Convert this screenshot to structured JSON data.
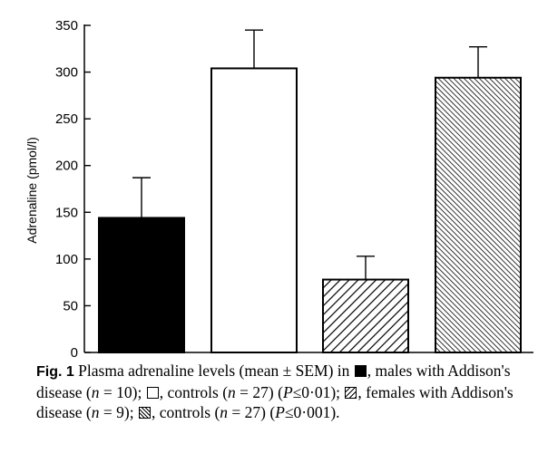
{
  "chart_data": {
    "type": "bar",
    "title": "",
    "xlabel": "",
    "ylabel": "Adrenaline (pmol/l)",
    "ylim": [
      0,
      350
    ],
    "yticks": [
      "0",
      "50",
      "100",
      "150",
      "200",
      "250",
      "300",
      "350"
    ],
    "grid": false,
    "categories": [
      "males with Addison's disease",
      "controls",
      "females with Addison's disease",
      "controls"
    ],
    "values": [
      144,
      304,
      78,
      294
    ],
    "error_upper": [
      187,
      345,
      103,
      327
    ],
    "fills": [
      "solid-black",
      "white",
      "hatch-fine",
      "hatch-dense"
    ]
  },
  "caption": {
    "fig_label": "Fig. 1",
    "segments": [
      " Plasma adrenaline levels (mean ± SEM) in ",
      ", males with Addison's disease (",
      "n",
      " = 10); ",
      ", controls (",
      "n",
      " = 27) (",
      "P",
      "≤0·01); ",
      ", females with Addison's disease (",
      "n",
      " = 9); ",
      ", controls (",
      "n",
      " = 27) (",
      "P",
      "≤0·001)."
    ]
  }
}
